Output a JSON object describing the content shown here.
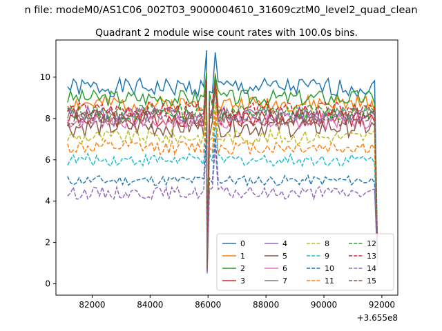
{
  "figure": {
    "suptitle": "n file: modeM0/AS1C06_002T03_9000004610_31609cztM0_level2_quad_clean",
    "offset_label": "+3.655e8"
  },
  "chart_data": {
    "type": "line",
    "title": "Quadrant 2 module wise count rates with 100.0s bins.",
    "xlabel": "",
    "ylabel": "",
    "x_offset": 365500000,
    "xlim": [
      80750,
      92550
    ],
    "ylim": [
      -0.55,
      11.8
    ],
    "x_ticks": [
      82000,
      84000,
      86000,
      88000,
      90000,
      92000
    ],
    "x_tick_labels": [
      "82000",
      "84000",
      "86000",
      "88000",
      "90000",
      "92000"
    ],
    "y_ticks": [
      0,
      2,
      4,
      6,
      8,
      10
    ],
    "y_tick_labels": [
      "0",
      "2",
      "4",
      "6",
      "8",
      "10"
    ],
    "grid": false,
    "legend_position": "lower right",
    "legend_columns": 4,
    "segments": [
      {
        "start": 81150,
        "end": 85950,
        "points": 49
      },
      {
        "start": 86050,
        "end": 91750,
        "points": 58
      }
    ],
    "dip_x": [
      85950,
      86050
    ],
    "end_x": 91850,
    "series": [
      {
        "name": "0",
        "color": "#1f77b4",
        "dash": "solid",
        "peak": 11.3,
        "level": 9.5,
        "noise": 0.45,
        "dip": 1.0,
        "end": 1.6
      },
      {
        "name": "1",
        "color": "#ff7f0e",
        "dash": "solid",
        "peak": 10.3,
        "level": 8.7,
        "noise": 0.4,
        "dip": 0.9,
        "end": 1.5
      },
      {
        "name": "2",
        "color": "#2ca02c",
        "dash": "solid",
        "peak": 10.2,
        "level": 9.0,
        "noise": 0.4,
        "dip": 0.8,
        "end": 1.4
      },
      {
        "name": "3",
        "color": "#d62728",
        "dash": "solid",
        "peak": 9.9,
        "level": 8.0,
        "noise": 0.4,
        "dip": 0.8,
        "end": 1.3
      },
      {
        "name": "4",
        "color": "#9467bd",
        "dash": "solid",
        "peak": 9.7,
        "level": 8.2,
        "noise": 0.4,
        "dip": 0.7,
        "end": 1.3
      },
      {
        "name": "5",
        "color": "#8c564b",
        "dash": "solid",
        "peak": 9.6,
        "level": 7.6,
        "noise": 0.5,
        "dip": 0.6,
        "end": 1.2
      },
      {
        "name": "6",
        "color": "#e377c2",
        "dash": "solid",
        "peak": 9.6,
        "level": 7.9,
        "noise": 0.4,
        "dip": 0.7,
        "end": 1.2
      },
      {
        "name": "7",
        "color": "#7f7f7f",
        "dash": "solid",
        "peak": 9.5,
        "level": 8.1,
        "noise": 0.45,
        "dip": 0.7,
        "end": 1.2
      },
      {
        "name": "8",
        "color": "#bcbd22",
        "dash": "dashed",
        "peak": 8.9,
        "level": 7.1,
        "noise": 0.35,
        "dip": 0.7,
        "end": 1.1
      },
      {
        "name": "9",
        "color": "#17becf",
        "dash": "dashed",
        "peak": 8.0,
        "level": 6.0,
        "noise": 0.3,
        "dip": 0.6,
        "end": 1.0
      },
      {
        "name": "10",
        "color": "#1f77b4",
        "dash": "dashed",
        "peak": 7.3,
        "level": 5.0,
        "noise": 0.25,
        "dip": 0.6,
        "end": 0.9
      },
      {
        "name": "11",
        "color": "#ff7f0e",
        "dash": "dashed",
        "peak": 8.5,
        "level": 6.6,
        "noise": 0.35,
        "dip": 0.7,
        "end": 1.0
      },
      {
        "name": "12",
        "color": "#2ca02c",
        "dash": "dashed",
        "peak": 10.0,
        "level": 8.3,
        "noise": 0.4,
        "dip": 0.8,
        "end": 1.3
      },
      {
        "name": "13",
        "color": "#d62728",
        "dash": "dashed",
        "peak": 9.8,
        "level": 8.4,
        "noise": 0.4,
        "dip": 0.8,
        "end": 1.3
      },
      {
        "name": "14",
        "color": "#9467bd",
        "dash": "dashed",
        "peak": 6.8,
        "level": 4.4,
        "noise": 0.3,
        "dip": 0.5,
        "end": 0.8
      },
      {
        "name": "15",
        "color": "#8c564b",
        "dash": "dashed",
        "peak": 9.7,
        "level": 8.0,
        "noise": 0.45,
        "dip": 0.7,
        "end": 1.2
      }
    ]
  }
}
